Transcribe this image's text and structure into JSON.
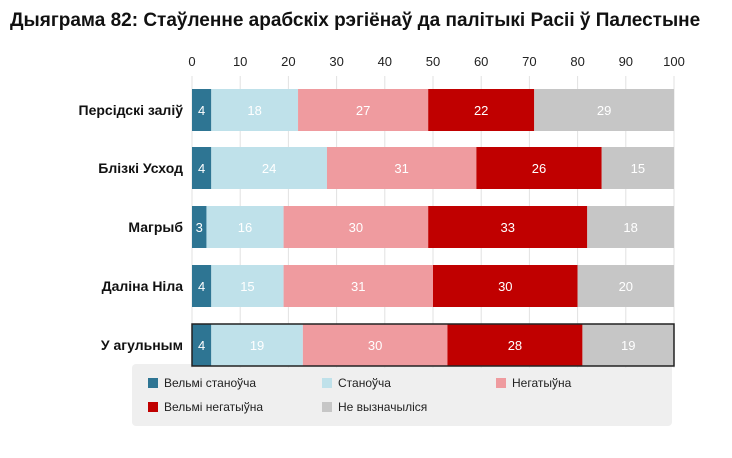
{
  "chart_data": {
    "type": "bar",
    "orientation": "horizontal",
    "stacked": true,
    "title": "Дыяграма 82: Стаўленне арабскіх рэгіёнаў да палітыкі Расіі ў Палестыне",
    "categories": [
      "Персідскі заліў",
      "Блізкі Усход",
      "Магрыб",
      "Даліна Ніла",
      "У агульным"
    ],
    "xlim": [
      0,
      100
    ],
    "x_ticks": [
      0,
      10,
      20,
      30,
      40,
      50,
      60,
      70,
      80,
      90,
      100
    ],
    "grid": true,
    "legend_position": "bottom",
    "series": [
      {
        "name": "Вельмі станоўча",
        "color": "#2e7593",
        "label_color": "#ffffff",
        "values": [
          4,
          4,
          3,
          4,
          4
        ]
      },
      {
        "name": "Станоўча",
        "color": "#bfe1ea",
        "label_color": "#ffffff",
        "values": [
          18,
          24,
          16,
          15,
          19
        ]
      },
      {
        "name": "Негатыўна",
        "color": "#ef9b9f",
        "label_color": "#ffffff",
        "values": [
          27,
          31,
          30,
          31,
          30
        ]
      },
      {
        "name": "Вельмі негатыўна",
        "color": "#c00000",
        "label_color": "#ffffff",
        "values": [
          22,
          26,
          33,
          30,
          28
        ]
      },
      {
        "name": "Не вызначыліся",
        "color": "#c6c6c6",
        "label_color": "#ffffff",
        "values": [
          29,
          15,
          18,
          20,
          19
        ]
      }
    ]
  }
}
